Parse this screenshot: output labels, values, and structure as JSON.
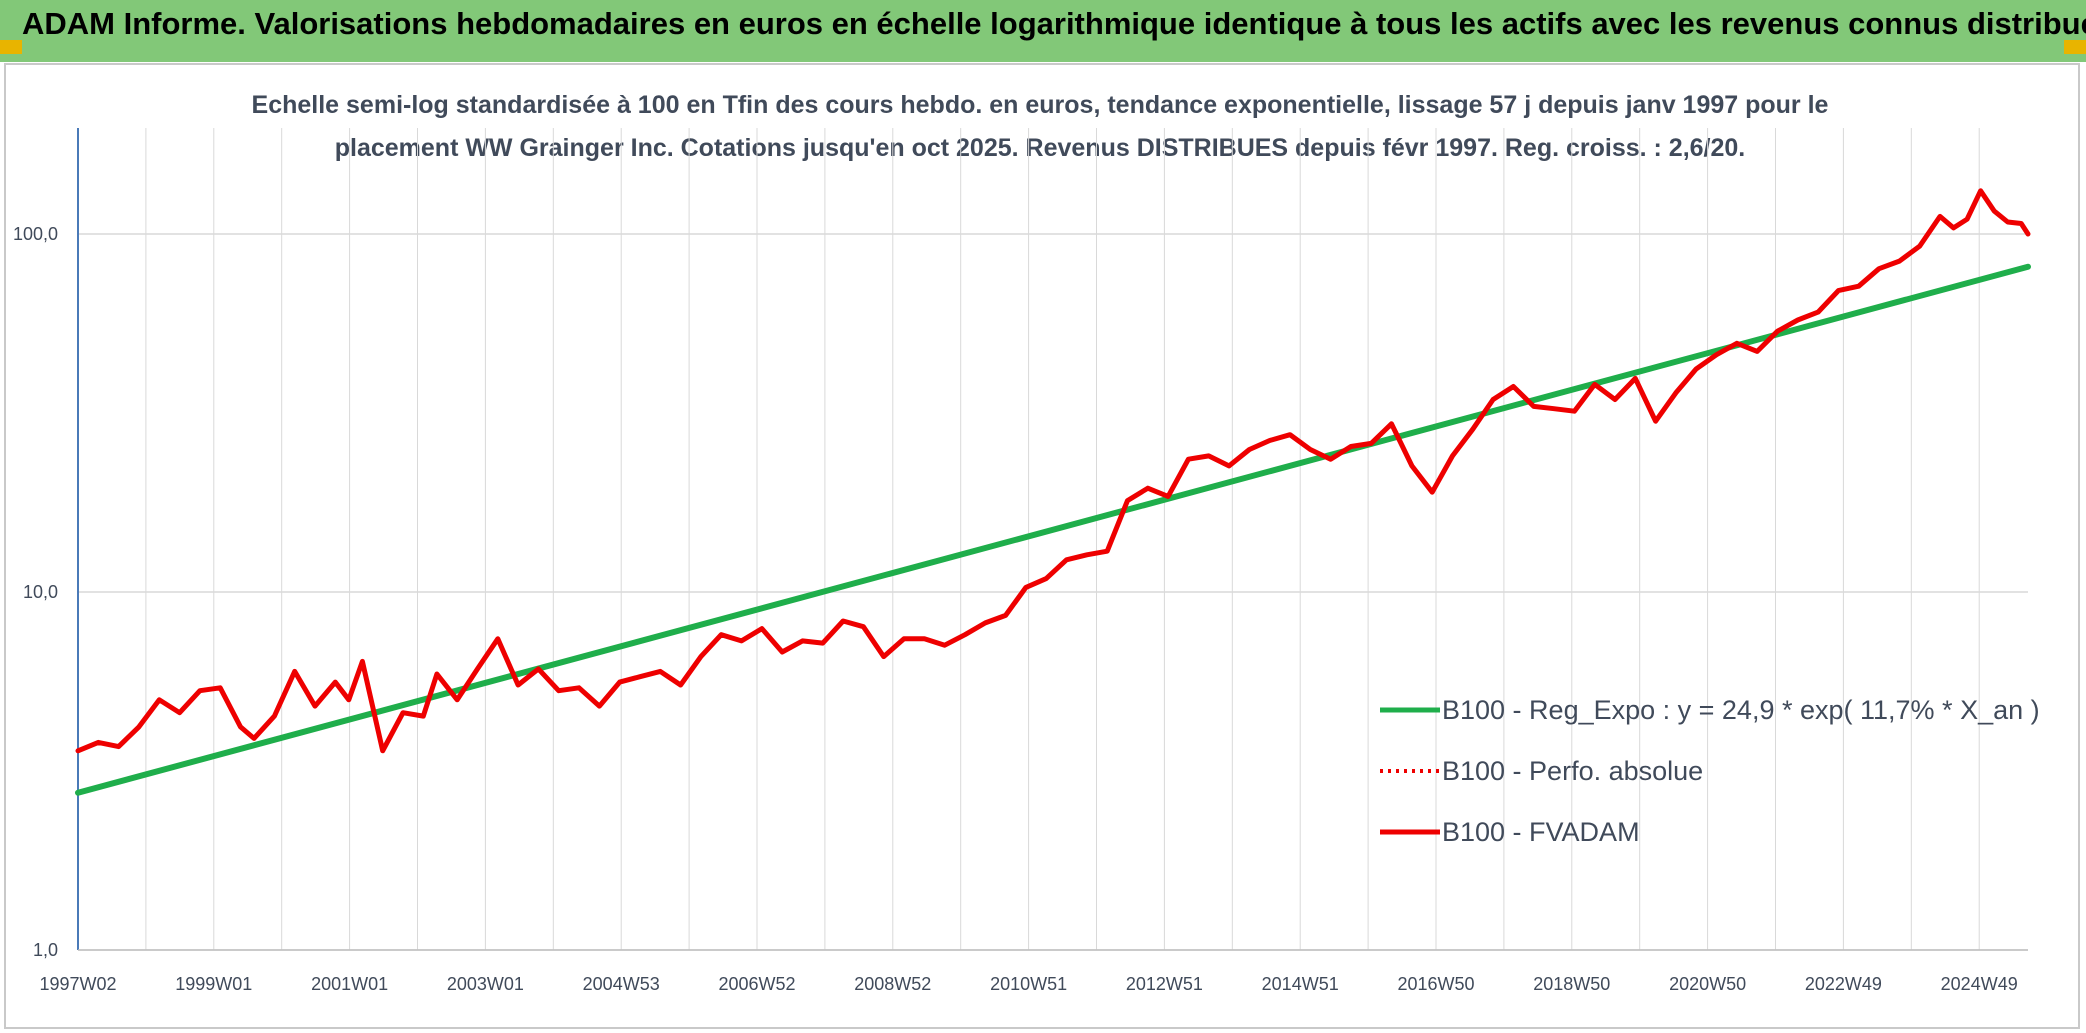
{
  "header": {
    "title": "ADAM Informe. Valorisations hebdomadaires en euros en échelle logarithmique identique à tous les actifs avec les revenus connus distribués"
  },
  "subtitle": {
    "line1": "Echelle semi-log standardisée à 100 en Tfin des cours hebdo. en euros, tendance exponentielle, lissage 57 j depuis janv 1997 pour le",
    "line2": "placement WW Grainger Inc. Cotations jusqu'en oct 2025. Revenus DISTRIBUES depuis févr 1997. Reg. croiss. : 2,6/20."
  },
  "colors": {
    "banner": "#82c878",
    "regression": "#1fae4b",
    "fvadam": "#ee0000",
    "perfo": "#ee0000",
    "grid": "#d9d9d9",
    "axis": "#4a7ab8",
    "text": "#404a5a"
  },
  "chart_data": {
    "type": "line",
    "yscale": "log",
    "ylim": [
      1,
      180
    ],
    "y_ticks": [
      {
        "value": 1,
        "label": "1,0"
      },
      {
        "value": 10,
        "label": "10,0"
      },
      {
        "value": 100,
        "label": "100,0"
      }
    ],
    "x_tick_labels": [
      "1997W02",
      "1999W01",
      "2001W01",
      "2003W01",
      "2004W53",
      "2006W52",
      "2008W52",
      "2010W51",
      "2012W51",
      "2014W51",
      "2016W50",
      "2018W50",
      "2020W50",
      "2022W49",
      "2024W49"
    ],
    "xlim": [
      1997.0,
      2025.8
    ],
    "legend": {
      "position": "right",
      "entries": [
        {
          "label": "B100 - Reg_Expo : y = 24,9 * exp( 11,7% *  X_an )",
          "style": "solid-green"
        },
        {
          "label": "B100 - Perfo. absolue",
          "style": "dotted-red"
        },
        {
          "label": "B100 - FVADAM",
          "style": "solid-red"
        }
      ]
    },
    "series": [
      {
        "name": "B100 - Reg_Expo : y = 24,9 * exp( 11,7% *  X_an )",
        "x": [
          1997.0,
          2025.8
        ],
        "y": [
          2.75,
          81
        ]
      },
      {
        "name": "B100 - FVADAM",
        "x": [
          1997.0,
          1997.3,
          1997.6,
          1997.9,
          1998.2,
          1998.5,
          1998.8,
          1999.1,
          1999.4,
          1999.6,
          1999.9,
          2000.2,
          2000.5,
          2000.8,
          2001.0,
          2001.2,
          2001.5,
          2001.8,
          2002.1,
          2002.3,
          2002.6,
          2002.9,
          2003.2,
          2003.5,
          2003.8,
          2004.1,
          2004.4,
          2004.7,
          2005.0,
          2005.3,
          2005.6,
          2005.9,
          2006.2,
          2006.5,
          2006.8,
          2007.1,
          2007.4,
          2007.7,
          2008.0,
          2008.3,
          2008.6,
          2008.9,
          2009.2,
          2009.5,
          2009.8,
          2010.1,
          2010.4,
          2010.7,
          2011.0,
          2011.3,
          2011.6,
          2011.9,
          2012.2,
          2012.5,
          2012.8,
          2013.1,
          2013.4,
          2013.7,
          2014.0,
          2014.3,
          2014.6,
          2014.9,
          2015.2,
          2015.5,
          2015.8,
          2016.1,
          2016.4,
          2016.7,
          2017.0,
          2017.3,
          2017.6,
          2017.9,
          2018.2,
          2018.5,
          2018.8,
          2019.1,
          2019.4,
          2019.7,
          2020.0,
          2020.3,
          2020.6,
          2020.9,
          2021.2,
          2021.5,
          2021.8,
          2022.1,
          2022.4,
          2022.7,
          2023.0,
          2023.3,
          2023.6,
          2023.9,
          2024.2,
          2024.5,
          2024.7,
          2024.9,
          2025.1,
          2025.3,
          2025.5,
          2025.7,
          2025.8
        ],
        "y": [
          3.6,
          3.8,
          3.7,
          4.2,
          5.0,
          4.6,
          5.3,
          5.4,
          4.2,
          3.9,
          4.5,
          6.0,
          4.8,
          5.6,
          5.0,
          6.4,
          3.6,
          4.6,
          4.5,
          5.9,
          5.0,
          6.1,
          7.4,
          5.5,
          6.1,
          5.3,
          5.4,
          4.8,
          5.6,
          5.8,
          6.0,
          5.5,
          6.6,
          7.6,
          7.3,
          7.9,
          6.8,
          7.3,
          7.2,
          8.3,
          8.0,
          6.6,
          7.4,
          7.4,
          7.1,
          7.6,
          8.2,
          8.6,
          10.3,
          10.9,
          12.3,
          12.7,
          13.0,
          18.0,
          19.5,
          18.5,
          23.5,
          24.0,
          22.5,
          25.0,
          26.5,
          27.5,
          25.0,
          23.5,
          25.5,
          26.0,
          29.5,
          22.5,
          19.0,
          24.0,
          28.5,
          34.5,
          37.5,
          33.0,
          32.5,
          32.0,
          38.0,
          34.5,
          39.5,
          30.0,
          36.0,
          42.0,
          46.0,
          49.5,
          47.0,
          53.5,
          57.5,
          60.5,
          69.5,
          71.5,
          80.0,
          84.0,
          92.5,
          112.0,
          104.0,
          110.0,
          132.0,
          116.0,
          108.0,
          107.0,
          100.0
        ]
      }
    ]
  }
}
